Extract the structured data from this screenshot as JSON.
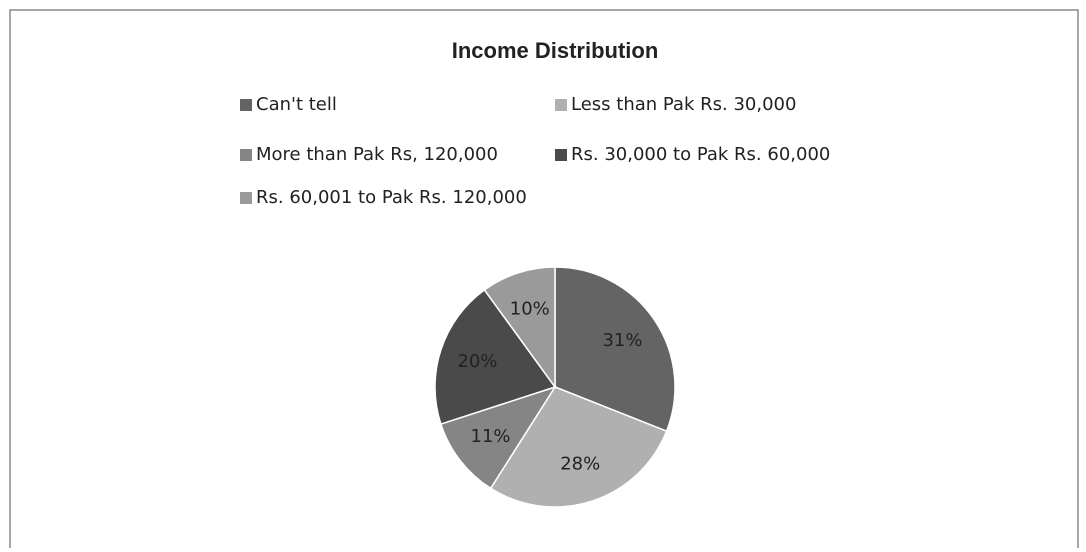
{
  "chart_data": {
    "type": "pie",
    "title": "Income Distribution",
    "categories": [
      "Can't tell",
      "Less than Pak Rs. 30,000",
      "More than Pak Rs, 120,000",
      "Rs. 30,000 to Pak Rs. 60,000",
      "Rs. 60,001 to Pak Rs. 120,000"
    ],
    "values": [
      31,
      28,
      11,
      20,
      10
    ],
    "value_labels": [
      "31%",
      "28%",
      "11%",
      "20%",
      "10%"
    ],
    "colors": [
      "#646464",
      "#b0b0b0",
      "#858585",
      "#4a4a4a",
      "#9a9a9a"
    ]
  }
}
